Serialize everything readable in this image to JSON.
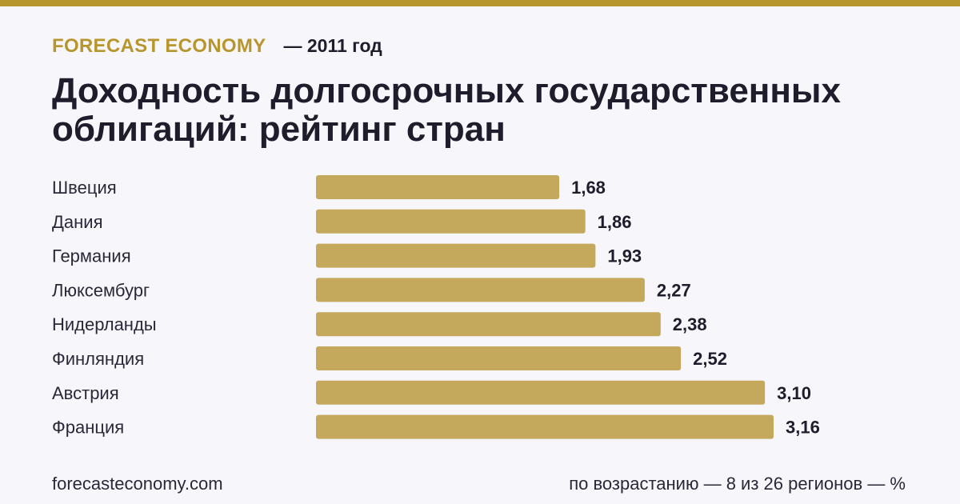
{
  "header": {
    "brand": "FORECAST ECONOMY",
    "year": "— 2011 год",
    "title": "Доходность долгосрочных государственных облигаций: рейтинг стран"
  },
  "colors": {
    "accent": "#b8962e",
    "bar": "#c4a85c",
    "background": "#f7f6fa",
    "text": "#1f1d2b"
  },
  "chart_data": {
    "type": "bar",
    "orientation": "horizontal",
    "categories": [
      "Швеция",
      "Дания",
      "Германия",
      "Люксембург",
      "Нидерланды",
      "Финляндия",
      "Австрия",
      "Франция"
    ],
    "values": [
      1.68,
      1.86,
      1.93,
      2.27,
      2.38,
      2.52,
      3.1,
      3.16
    ],
    "value_labels": [
      "1,68",
      "1,86",
      "1,93",
      "2,27",
      "2,38",
      "2,52",
      "3,10",
      "3,16"
    ],
    "title": "Доходность долгосрочных государственных облигаций: рейтинг стран",
    "xlim": [
      0,
      3.16
    ],
    "grid": false,
    "legend": "none"
  },
  "footer": {
    "source": "forecasteconomy.com",
    "note": "по возрастанию — 8 из 26 регионов — %"
  }
}
